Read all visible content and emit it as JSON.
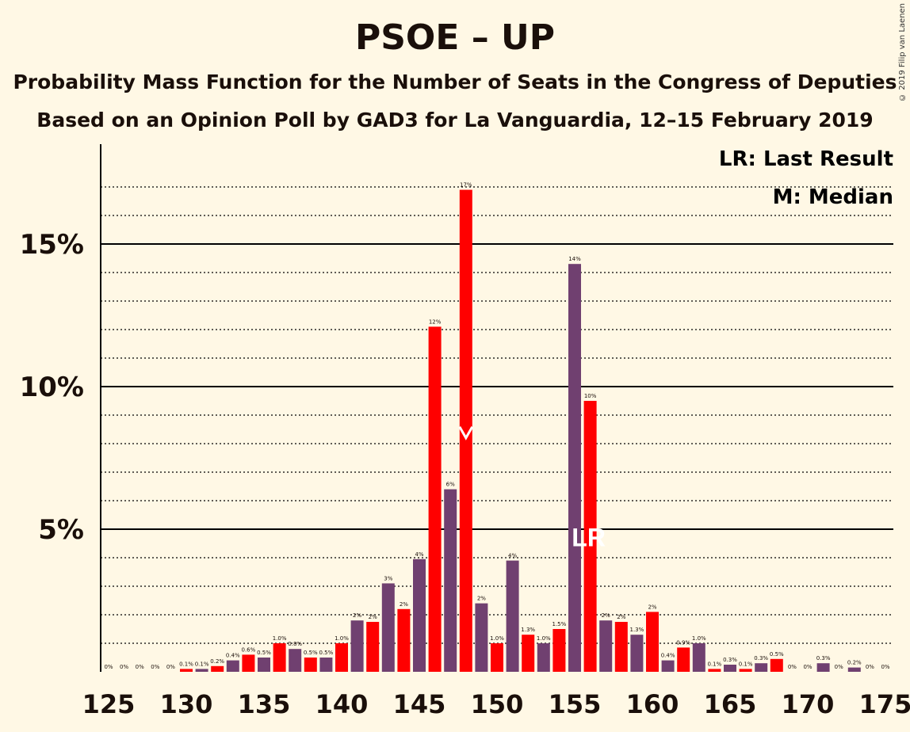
{
  "title": "PSOE – UP",
  "subtitle1": "Probability Mass Function for the Number of Seats in the Congress of Deputies",
  "subtitle2": "Based on an Opinion Poll by GAD3 for La Vanguardia, 12–15 February 2019",
  "copyright": "© 2019 Filip van Laenen",
  "legend": {
    "last_result": "LR: Last Result",
    "median": "M: Median"
  },
  "markers": {
    "last_result_label": "LR",
    "median_label": "M"
  },
  "colors": {
    "red": "#FF0000",
    "purple": "#704070",
    "background": "#FFF8E5",
    "text": "#1a0f0a"
  },
  "chart_data": {
    "type": "bar",
    "xlim": [
      125,
      175
    ],
    "ylim": [
      0,
      18.5
    ],
    "x_ticks": [
      125,
      130,
      135,
      140,
      145,
      150,
      155,
      160,
      165,
      170,
      175
    ],
    "y_ticks": [
      5,
      10,
      15
    ],
    "y_tick_labels": [
      "5%",
      "10%",
      "15%"
    ],
    "median_seat": 148,
    "last_result_seat": 156,
    "bars": [
      {
        "seat": 125,
        "value": 0,
        "label": "0%"
      },
      {
        "seat": 126,
        "value": 0,
        "label": "0%"
      },
      {
        "seat": 127,
        "value": 0,
        "label": "0%"
      },
      {
        "seat": 128,
        "value": 0,
        "label": "0%"
      },
      {
        "seat": 129,
        "value": 0,
        "label": "0%"
      },
      {
        "seat": 130,
        "value": 0.1,
        "label": "0.1%"
      },
      {
        "seat": 131,
        "value": 0.1,
        "label": "0.1%"
      },
      {
        "seat": 132,
        "value": 0.2,
        "label": "0.2%"
      },
      {
        "seat": 133,
        "value": 0.4,
        "label": "0.4%"
      },
      {
        "seat": 134,
        "value": 0.6,
        "label": "0.6%"
      },
      {
        "seat": 135,
        "value": 0.5,
        "label": "0.5%"
      },
      {
        "seat": 136,
        "value": 1.0,
        "label": "1.0%"
      },
      {
        "seat": 137,
        "value": 0.8,
        "label": "0.8%"
      },
      {
        "seat": 138,
        "value": 0.5,
        "label": "0.5%"
      },
      {
        "seat": 139,
        "value": 0.5,
        "label": "0.5%"
      },
      {
        "seat": 140,
        "value": 1.0,
        "label": "1.0%"
      },
      {
        "seat": 141,
        "value": 1.8,
        "label": "2%"
      },
      {
        "seat": 142,
        "value": 1.75,
        "label": "2%"
      },
      {
        "seat": 143,
        "value": 3.1,
        "label": "3%"
      },
      {
        "seat": 144,
        "value": 2.2,
        "label": "2%"
      },
      {
        "seat": 145,
        "value": 3.95,
        "label": "4%"
      },
      {
        "seat": 146,
        "value": 12.1,
        "label": "12%"
      },
      {
        "seat": 147,
        "value": 6.4,
        "label": "6%"
      },
      {
        "seat": 148,
        "value": 16.9,
        "label": "17%"
      },
      {
        "seat": 149,
        "value": 2.4,
        "label": "2%"
      },
      {
        "seat": 150,
        "value": 1.0,
        "label": "1.0%"
      },
      {
        "seat": 151,
        "value": 3.9,
        "label": "4%"
      },
      {
        "seat": 152,
        "value": 1.3,
        "label": "1.3%"
      },
      {
        "seat": 153,
        "value": 1.0,
        "label": "1.0%"
      },
      {
        "seat": 154,
        "value": 1.5,
        "label": "1.5%"
      },
      {
        "seat": 155,
        "value": 14.3,
        "label": "14%"
      },
      {
        "seat": 156,
        "value": 9.5,
        "label": "10%"
      },
      {
        "seat": 157,
        "value": 1.8,
        "label": "2%"
      },
      {
        "seat": 158,
        "value": 1.75,
        "label": "2%"
      },
      {
        "seat": 159,
        "value": 1.3,
        "label": "1.3%"
      },
      {
        "seat": 160,
        "value": 2.1,
        "label": "2%"
      },
      {
        "seat": 161,
        "value": 0.4,
        "label": "0.4%"
      },
      {
        "seat": 162,
        "value": 0.85,
        "label": "0.9%"
      },
      {
        "seat": 163,
        "value": 1.0,
        "label": "1.0%"
      },
      {
        "seat": 164,
        "value": 0.1,
        "label": "0.1%"
      },
      {
        "seat": 165,
        "value": 0.25,
        "label": "0.3%"
      },
      {
        "seat": 166,
        "value": 0.1,
        "label": "0.1%"
      },
      {
        "seat": 167,
        "value": 0.3,
        "label": "0.3%"
      },
      {
        "seat": 168,
        "value": 0.45,
        "label": "0.5%"
      },
      {
        "seat": 169,
        "value": 0,
        "label": "0%"
      },
      {
        "seat": 170,
        "value": 0,
        "label": "0%"
      },
      {
        "seat": 171,
        "value": 0.3,
        "label": "0.3%"
      },
      {
        "seat": 172,
        "value": 0,
        "label": "0%"
      },
      {
        "seat": 173,
        "value": 0.15,
        "label": "0.2%"
      },
      {
        "seat": 174,
        "value": 0,
        "label": "0%"
      },
      {
        "seat": 175,
        "value": 0,
        "label": "0%"
      }
    ]
  }
}
